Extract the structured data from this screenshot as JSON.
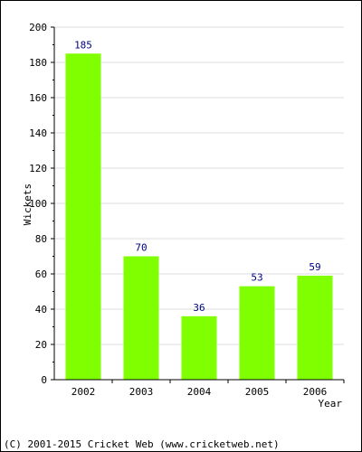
{
  "chart_data": {
    "type": "bar",
    "categories": [
      "2002",
      "2003",
      "2004",
      "2005",
      "2006"
    ],
    "values": [
      185,
      70,
      36,
      53,
      59
    ],
    "data_labels": [
      "185",
      "70",
      "36",
      "53",
      "59"
    ],
    "xlabel": "Year",
    "ylabel": "Wickets",
    "ylim": [
      0,
      200
    ],
    "yticks": [
      "0",
      "20",
      "40",
      "60",
      "80",
      "100",
      "120",
      "140",
      "160",
      "180",
      "200"
    ],
    "grid": "horizontal",
    "bar_color": "#80ff00"
  },
  "footer": {
    "copyright": "(C) 2001-2015 Cricket Web (www.cricketweb.net)"
  }
}
